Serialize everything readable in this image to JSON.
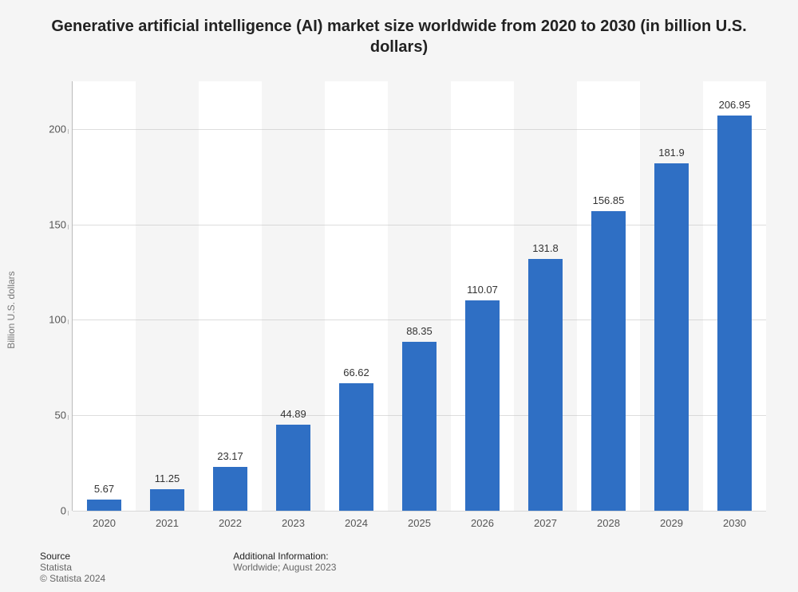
{
  "title": "Generative artificial intelligence (AI) market size worldwide from 2020 to 2030 (in billion U.S. dollars)",
  "title_fontsize": 20,
  "chart": {
    "type": "bar",
    "categories": [
      "2020",
      "2021",
      "2022",
      "2023",
      "2024",
      "2025",
      "2026",
      "2027",
      "2028",
      "2029",
      "2030"
    ],
    "values": [
      5.67,
      11.25,
      23.17,
      44.89,
      66.62,
      88.35,
      110.07,
      131.8,
      156.85,
      181.9,
      206.95
    ],
    "value_labels": [
      "5.67",
      "11.25",
      "23.17",
      "44.89",
      "66.62",
      "88.35",
      "110.07",
      "131.8",
      "156.85",
      "181.9",
      "206.95"
    ],
    "bar_color": "#2f6fc4",
    "bar_width_ratio": 0.55,
    "ylim": [
      0,
      225
    ],
    "yticks": [
      0,
      50,
      100,
      150,
      200
    ],
    "ytick_labels": [
      "0",
      "50",
      "100",
      "150",
      "200"
    ],
    "ylabel": "Billion U.S. dollars",
    "ylabel_fontsize": 12,
    "tick_fontsize": 13,
    "datalabel_fontsize": 13,
    "background_color": "#f5f5f5",
    "stripe_color": "#ffffff",
    "grid_color": "#bbbbbb",
    "text_color": "#555555"
  },
  "footer": {
    "source_heading": "Source",
    "source_value": "Statista",
    "copyright": "© Statista 2024",
    "info_heading": "Additional Information:",
    "info_value": "Worldwide; August 2023",
    "fontsize": 12
  }
}
